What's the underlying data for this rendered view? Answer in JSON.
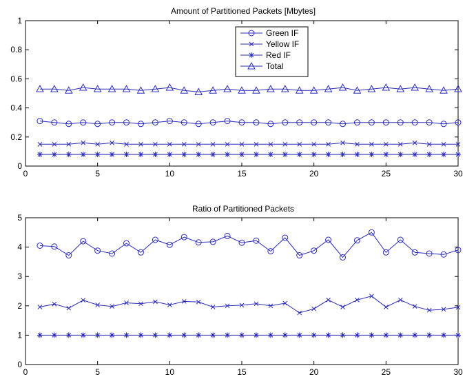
{
  "series_color": "#2a2ab8",
  "chart_data": [
    {
      "type": "line",
      "title": "Amount of Partitioned Packets [Mbytes]",
      "xlabel": "",
      "ylabel": "",
      "xlim": [
        0,
        30
      ],
      "ylim": [
        0,
        1
      ],
      "xticks": [
        0,
        5,
        10,
        15,
        20,
        25,
        30
      ],
      "xtick_labels": [
        "0",
        "5",
        "10",
        "15",
        "20",
        "25",
        "30"
      ],
      "yticks": [
        0,
        0.2,
        0.4,
        0.6,
        0.8,
        1
      ],
      "ytick_labels": [
        "0",
        "0.2",
        "0.4",
        "0.6",
        "0.8",
        "1"
      ],
      "grid": false,
      "legend": "top-center",
      "x": [
        1,
        2,
        3,
        4,
        5,
        6,
        7,
        8,
        9,
        10,
        11,
        12,
        13,
        14,
        15,
        16,
        17,
        18,
        19,
        20,
        21,
        22,
        23,
        24,
        25,
        26,
        27,
        28,
        29,
        30
      ],
      "series": [
        {
          "name": "Green IF",
          "marker": "circle",
          "values": [
            0.31,
            0.3,
            0.29,
            0.3,
            0.29,
            0.3,
            0.3,
            0.29,
            0.3,
            0.31,
            0.3,
            0.29,
            0.3,
            0.31,
            0.3,
            0.3,
            0.29,
            0.3,
            0.3,
            0.3,
            0.3,
            0.29,
            0.3,
            0.3,
            0.3,
            0.3,
            0.3,
            0.3,
            0.29,
            0.3
          ]
        },
        {
          "name": "Yellow IF",
          "marker": "x",
          "values": [
            0.15,
            0.15,
            0.15,
            0.16,
            0.15,
            0.16,
            0.15,
            0.15,
            0.15,
            0.15,
            0.15,
            0.15,
            0.15,
            0.15,
            0.15,
            0.15,
            0.15,
            0.15,
            0.15,
            0.15,
            0.15,
            0.16,
            0.15,
            0.15,
            0.15,
            0.15,
            0.16,
            0.15,
            0.15,
            0.15
          ]
        },
        {
          "name": "Red IF",
          "marker": "star",
          "values": [
            0.08,
            0.08,
            0.08,
            0.08,
            0.08,
            0.08,
            0.08,
            0.08,
            0.08,
            0.08,
            0.08,
            0.08,
            0.08,
            0.08,
            0.08,
            0.08,
            0.08,
            0.08,
            0.08,
            0.08,
            0.08,
            0.08,
            0.08,
            0.08,
            0.08,
            0.08,
            0.08,
            0.08,
            0.08,
            0.08
          ]
        },
        {
          "name": "Total",
          "marker": "triangle",
          "values": [
            0.53,
            0.53,
            0.52,
            0.54,
            0.53,
            0.53,
            0.53,
            0.52,
            0.53,
            0.54,
            0.52,
            0.51,
            0.52,
            0.53,
            0.52,
            0.52,
            0.53,
            0.53,
            0.52,
            0.52,
            0.53,
            0.54,
            0.52,
            0.53,
            0.54,
            0.53,
            0.54,
            0.53,
            0.52,
            0.53
          ]
        }
      ]
    },
    {
      "type": "line",
      "title": "Ratio of Partitioned Packets",
      "xlabel": "",
      "ylabel": "",
      "xlim": [
        0,
        30
      ],
      "ylim": [
        0,
        5
      ],
      "xticks": [
        0,
        5,
        10,
        15,
        20,
        25,
        30
      ],
      "xtick_labels": [
        "0",
        "5",
        "10",
        "15",
        "20",
        "25",
        "30"
      ],
      "yticks": [
        0,
        1,
        2,
        3,
        4,
        5
      ],
      "ytick_labels": [
        "0",
        "1",
        "2",
        "3",
        "4",
        "5"
      ],
      "grid": false,
      "legend": "none",
      "x": [
        1,
        2,
        3,
        4,
        5,
        6,
        7,
        8,
        9,
        10,
        11,
        12,
        13,
        14,
        15,
        16,
        17,
        18,
        19,
        20,
        21,
        22,
        23,
        24,
        25,
        26,
        27,
        28,
        29,
        30
      ],
      "series": [
        {
          "marker": "circle",
          "values": [
            4.05,
            4.02,
            3.72,
            4.2,
            3.88,
            3.78,
            4.13,
            3.82,
            4.25,
            4.08,
            4.34,
            4.16,
            4.18,
            4.38,
            4.15,
            4.22,
            3.86,
            4.32,
            3.72,
            3.88,
            4.25,
            3.65,
            4.23,
            4.5,
            3.82,
            4.25,
            3.82,
            3.78,
            3.75,
            3.9
          ]
        },
        {
          "marker": "x",
          "values": [
            1.96,
            2.06,
            1.92,
            2.19,
            2.03,
            1.98,
            2.1,
            2.07,
            2.14,
            2.03,
            2.15,
            2.13,
            1.96,
            2.0,
            2.02,
            2.07,
            2.0,
            2.09,
            1.76,
            1.9,
            2.2,
            1.96,
            2.2,
            2.33,
            1.96,
            2.2,
            1.98,
            1.85,
            1.88,
            1.95
          ]
        },
        {
          "marker": "star",
          "values": [
            1,
            1,
            1,
            1,
            1,
            1,
            1,
            1,
            1,
            1,
            1,
            1,
            1,
            1,
            1,
            1,
            1,
            1,
            1,
            1,
            1,
            1,
            1,
            1,
            1,
            1,
            1,
            1,
            1,
            1
          ]
        }
      ]
    }
  ]
}
